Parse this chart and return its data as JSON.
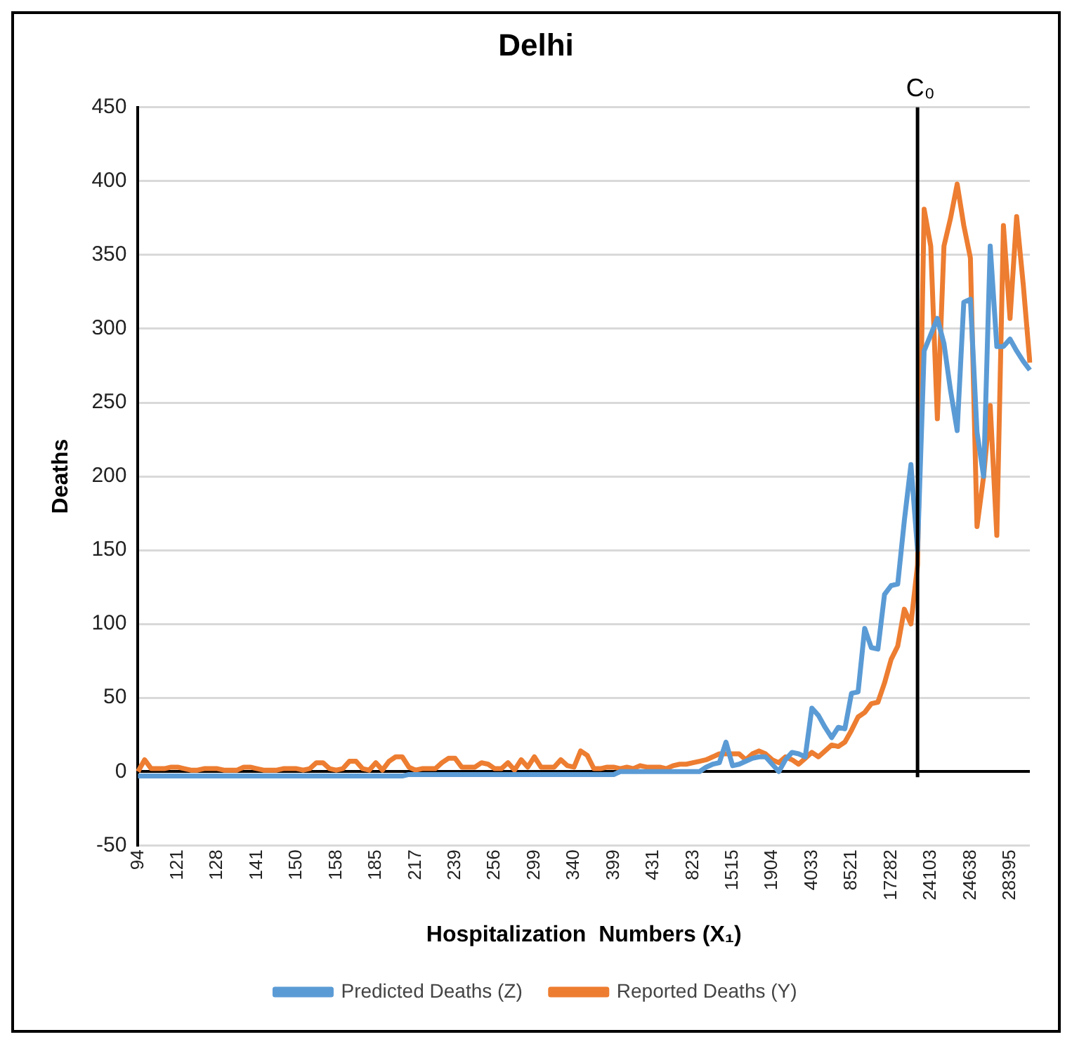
{
  "chart_data": {
    "type": "line",
    "title": "Delhi",
    "xlabel": "Hospitalization  Numbers (X₁)",
    "ylabel": "Deaths",
    "categories": [
      "94",
      null,
      null,
      null,
      null,
      null,
      "121",
      null,
      null,
      null,
      null,
      null,
      "128",
      null,
      null,
      null,
      null,
      null,
      "141",
      null,
      null,
      null,
      null,
      null,
      "150",
      null,
      null,
      null,
      null,
      null,
      "158",
      null,
      null,
      null,
      null,
      null,
      "185",
      null,
      null,
      null,
      null,
      null,
      "217",
      null,
      null,
      null,
      null,
      null,
      "239",
      null,
      null,
      null,
      null,
      null,
      "256",
      null,
      null,
      null,
      null,
      null,
      "299",
      null,
      null,
      null,
      null,
      null,
      "340",
      null,
      null,
      null,
      null,
      null,
      "399",
      null,
      null,
      null,
      null,
      null,
      "431",
      null,
      null,
      null,
      null,
      null,
      "823",
      null,
      null,
      null,
      null,
      null,
      "1515",
      null,
      null,
      null,
      null,
      null,
      "1904",
      null,
      null,
      null,
      null,
      null,
      "4033",
      null,
      null,
      null,
      null,
      null,
      "8521",
      null,
      null,
      null,
      null,
      null,
      "17282",
      null,
      null,
      null,
      null,
      null,
      "24103",
      null,
      null,
      null,
      null,
      null,
      "24638",
      null,
      null,
      null,
      null,
      null,
      "28395",
      null,
      null,
      null
    ],
    "series": [
      {
        "name": "Predicted Deaths (Z)",
        "color": "#5b9bd5",
        "values": [
          -3,
          -3,
          -3,
          -3,
          -3,
          -3,
          -3,
          -3,
          -3,
          -3,
          -3,
          -3,
          -3,
          -3,
          -3,
          -3,
          -3,
          -3,
          -3,
          -3,
          -3,
          -3,
          -3,
          -3,
          -3,
          -3,
          -3,
          -3,
          -3,
          -3,
          -3,
          -3,
          -3,
          -3,
          -3,
          -3,
          -3,
          -3,
          -3,
          -3,
          -3,
          -2,
          -2,
          -2,
          -2,
          -2,
          -2,
          -2,
          -2,
          -2,
          -2,
          -2,
          -2,
          -2,
          -2,
          -2,
          -2,
          -2,
          -2,
          -2,
          -2,
          -2,
          -2,
          -2,
          -2,
          -2,
          -2,
          -2,
          -2,
          -2,
          -2,
          -2,
          -2,
          0,
          0,
          0,
          0,
          0,
          0,
          0,
          0,
          0,
          0,
          0,
          0,
          0,
          3,
          5,
          6,
          20,
          4,
          5,
          7,
          9,
          10,
          10,
          5,
          0,
          8,
          13,
          12,
          10,
          43,
          38,
          30,
          23,
          30,
          29,
          53,
          54,
          97,
          84,
          83,
          120,
          126,
          127,
          170,
          208,
          150,
          285,
          296,
          307,
          290,
          258,
          231,
          318,
          320,
          230,
          200,
          356,
          288,
          288,
          293,
          285,
          278,
          272
        ]
      },
      {
        "name": "Reported Deaths (Y)",
        "color": "#ed7d31",
        "values": [
          0,
          8,
          2,
          2,
          2,
          3,
          3,
          2,
          1,
          1,
          2,
          2,
          2,
          1,
          1,
          1,
          3,
          3,
          2,
          1,
          1,
          1,
          2,
          2,
          2,
          1,
          2,
          6,
          6,
          2,
          1,
          2,
          7,
          7,
          2,
          1,
          6,
          1,
          7,
          10,
          10,
          3,
          1,
          2,
          2,
          2,
          6,
          9,
          9,
          3,
          3,
          3,
          6,
          5,
          2,
          2,
          6,
          1,
          8,
          3,
          10,
          3,
          3,
          3,
          8,
          4,
          3,
          14,
          11,
          2,
          2,
          3,
          3,
          2,
          3,
          2,
          4,
          3,
          3,
          3,
          2,
          4,
          5,
          5,
          6,
          7,
          8,
          10,
          12,
          12,
          12,
          12,
          8,
          12,
          14,
          12,
          8,
          6,
          10,
          8,
          5,
          9,
          13,
          10,
          14,
          18,
          17,
          20,
          28,
          37,
          40,
          46,
          47,
          60,
          76,
          85,
          110,
          100,
          140,
          381,
          356,
          239,
          356,
          375,
          398,
          370,
          348,
          166,
          200,
          248,
          160,
          370,
          307,
          376,
          330,
          277
        ]
      }
    ],
    "ylim": [
      -50,
      450
    ],
    "yticks": [
      -50,
      0,
      50,
      100,
      150,
      200,
      250,
      300,
      350,
      400,
      450
    ],
    "annotations": [
      "C₀"
    ],
    "grid": "y",
    "legend": "bottom",
    "marker": "none",
    "line_style": "solid"
  }
}
